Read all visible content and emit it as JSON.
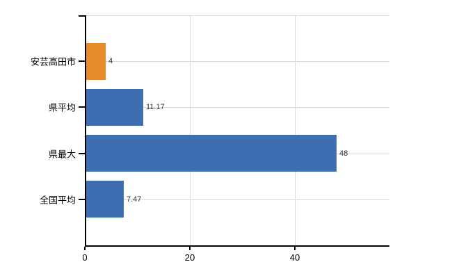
{
  "chart_data": {
    "type": "bar",
    "orientation": "horizontal",
    "categories": [
      "安芸高田市",
      "県平均",
      "県最大",
      "全国平均"
    ],
    "values": [
      4,
      11.17,
      48,
      7.47
    ],
    "value_labels": [
      "4",
      "11.17",
      "48",
      "7.47"
    ],
    "bar_colors": [
      "#e88b2d",
      "#3e6eb1",
      "#3e6eb1",
      "#3e6eb1"
    ],
    "xlim": [
      0,
      58
    ],
    "xticks": [
      0,
      20,
      40
    ],
    "xtick_labels": [
      "0",
      "20",
      "40"
    ],
    "grid": true,
    "grid_color": "#d9d9d9",
    "axis_color": "#000000",
    "value_label_color": "#333333",
    "category_label_color": "#000000",
    "legend": false
  }
}
